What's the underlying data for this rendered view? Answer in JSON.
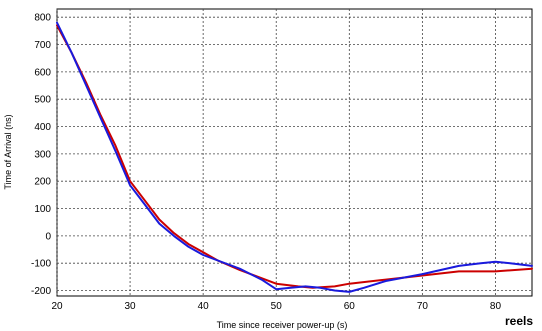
{
  "chart_data": {
    "type": "line",
    "title": "",
    "xlabel": "Time since receiver power-up (s)",
    "ylabel": "Time of Arrival (ns)",
    "xlim": [
      20,
      85
    ],
    "ylim": [
      -220,
      830
    ],
    "xticks": [
      20,
      30,
      40,
      50,
      60,
      70,
      80
    ],
    "yticks": [
      -200,
      -100,
      0,
      100,
      200,
      300,
      400,
      500,
      600,
      700,
      800
    ],
    "grid": true,
    "legend": "none",
    "series": [
      {
        "color": "#cc0000",
        "x": [
          20,
          22,
          24,
          26,
          28,
          30,
          32,
          34,
          36,
          38,
          40,
          42,
          45,
          48,
          50,
          53,
          55,
          58,
          60,
          65,
          70,
          75,
          80,
          85
        ],
        "y": [
          770,
          670,
          560,
          440,
          330,
          200,
          130,
          60,
          10,
          -30,
          -60,
          -90,
          -125,
          -155,
          -175,
          -185,
          -190,
          -185,
          -175,
          -160,
          -145,
          -130,
          -130,
          -120
        ]
      },
      {
        "color": "#1a1adc",
        "x": [
          20,
          22,
          24,
          26,
          28,
          30,
          32,
          34,
          36,
          38,
          40,
          42,
          45,
          48,
          50,
          52,
          54,
          56,
          58,
          60,
          62,
          65,
          70,
          75,
          78,
          80,
          82,
          85
        ],
        "y": [
          780,
          670,
          550,
          430,
          310,
          185,
          115,
          45,
          0,
          -40,
          -70,
          -90,
          -120,
          -160,
          -195,
          -190,
          -185,
          -190,
          -200,
          -205,
          -190,
          -165,
          -140,
          -110,
          -100,
          -95,
          -100,
          -110
        ]
      }
    ]
  },
  "footer": {
    "corner_text": "reels"
  }
}
